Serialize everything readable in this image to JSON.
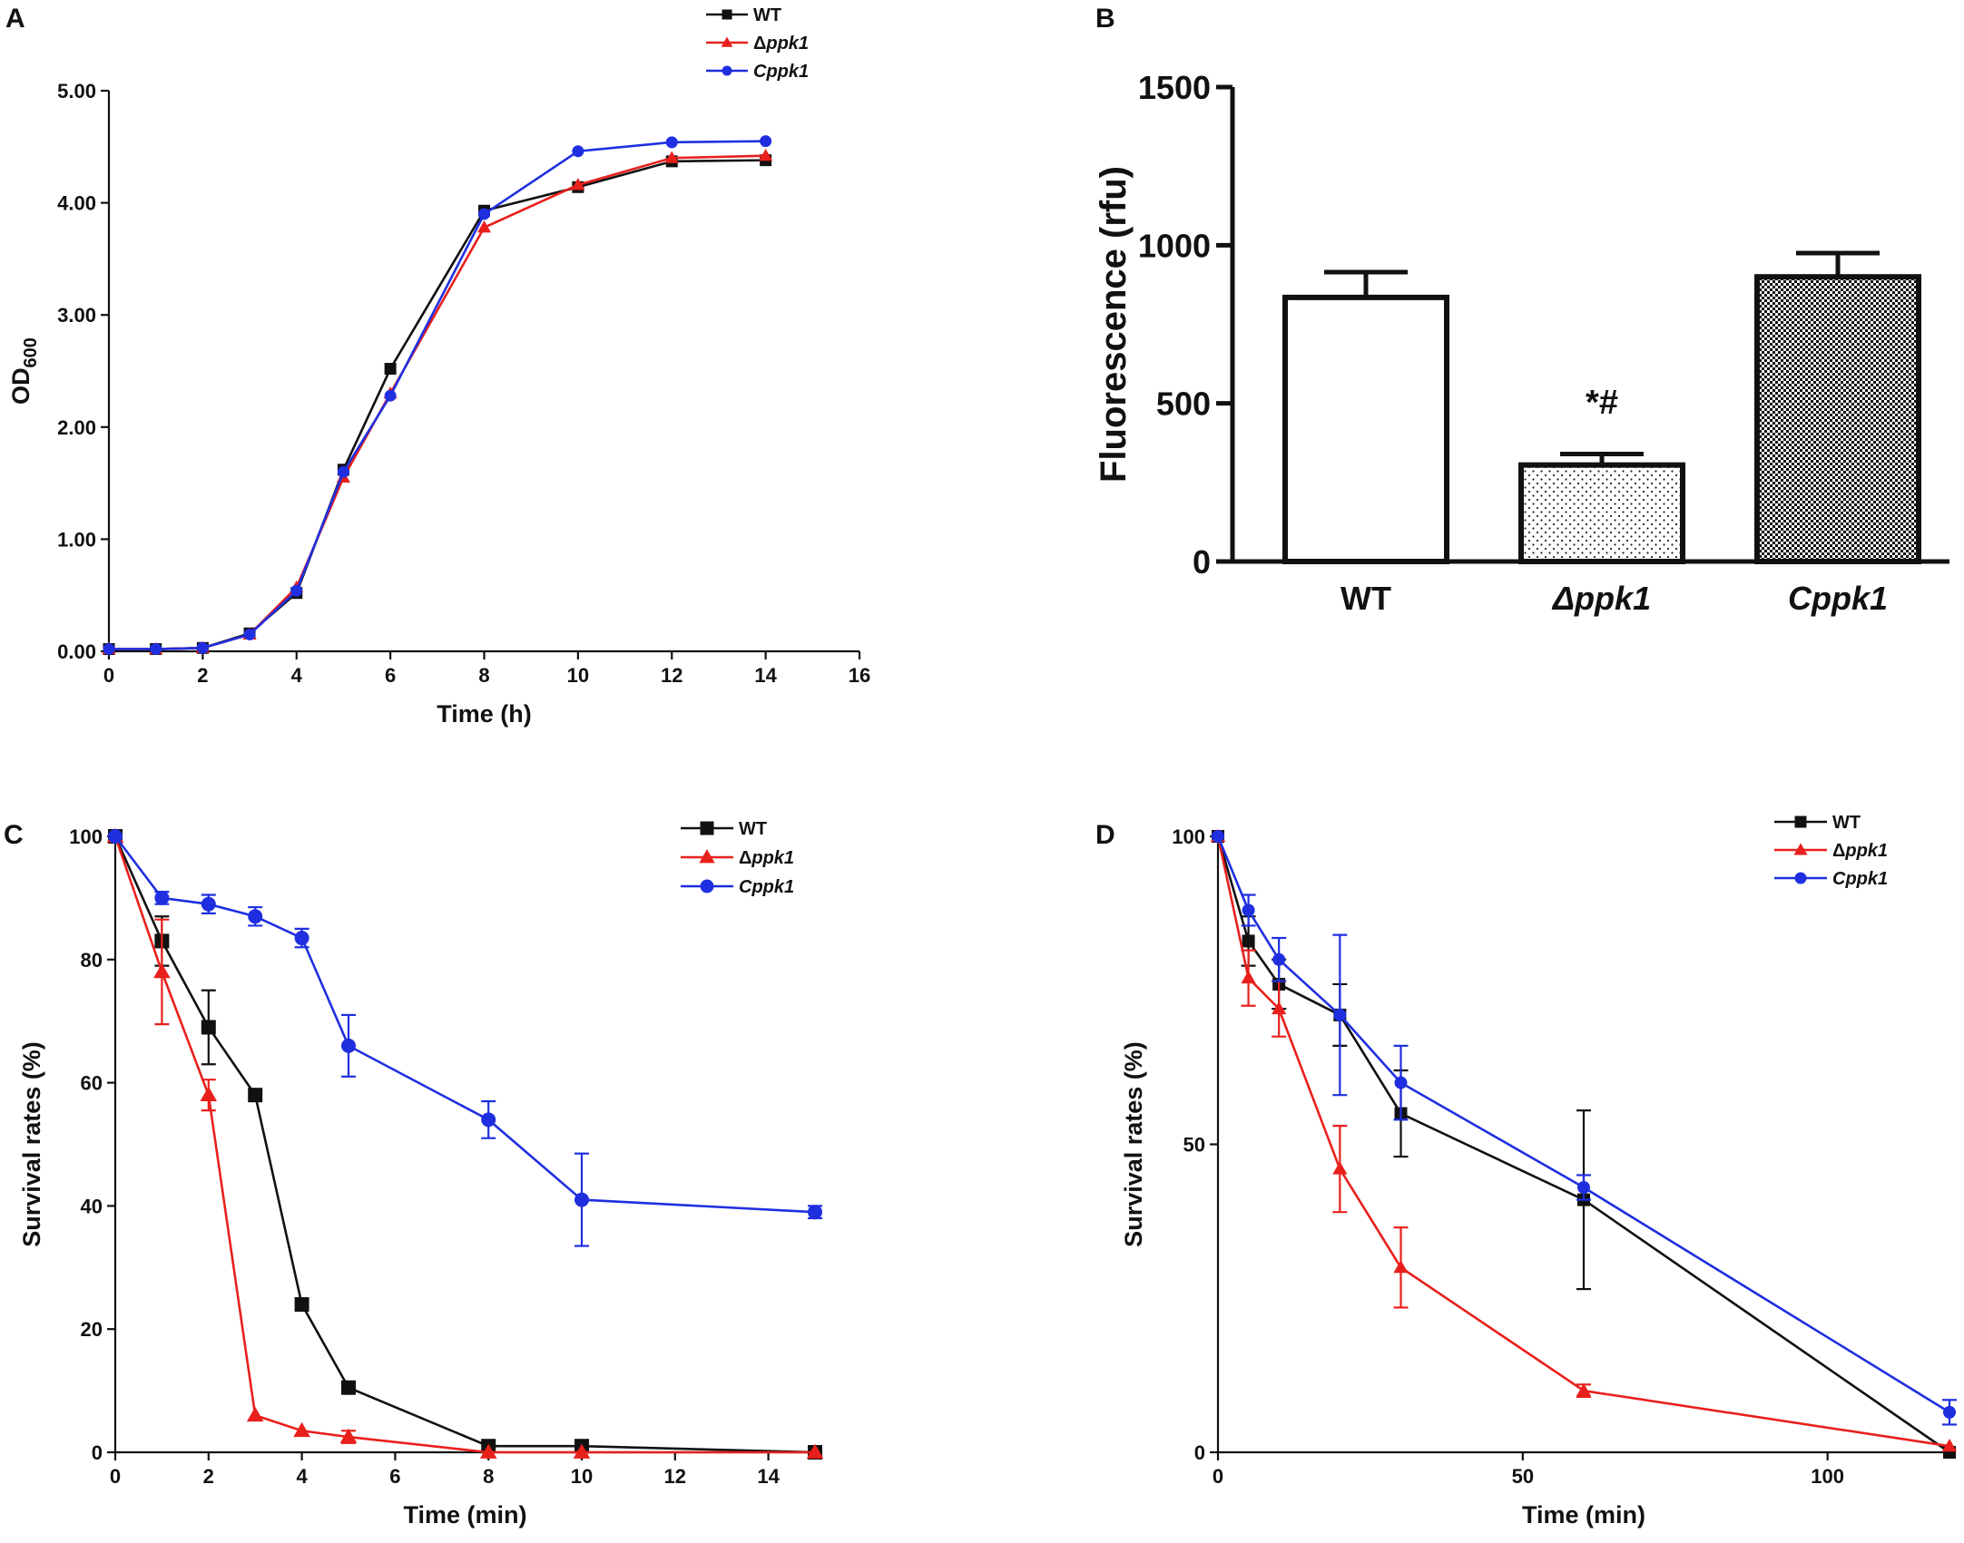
{
  "chart_data": [
    {
      "panel": "A",
      "type": "line",
      "xlabel": "Time (h)",
      "ylabel_main": "OD",
      "ylabel_sub": "600",
      "xlim": [
        0,
        16
      ],
      "ylim": [
        0,
        5
      ],
      "xticks": [
        "0",
        "2",
        "4",
        "6",
        "8",
        "10",
        "12",
        "14",
        "16"
      ],
      "yticks": [
        "0.00",
        "1.00",
        "2.00",
        "3.00",
        "4.00",
        "5.00"
      ],
      "x": [
        0,
        1,
        2,
        3,
        4,
        5,
        6,
        8,
        10,
        12,
        14
      ],
      "series": [
        {
          "name": "WT",
          "color": "#111111",
          "marker": "square",
          "values": [
            0.02,
            0.02,
            0.03,
            0.16,
            0.52,
            1.62,
            2.52,
            3.93,
            4.14,
            4.37,
            4.38
          ]
        },
        {
          "name": "Δppk1",
          "color": "#e8201c",
          "marker": "triangle",
          "values": [
            0.02,
            0.02,
            0.03,
            0.15,
            0.57,
            1.55,
            2.3,
            3.78,
            4.16,
            4.4,
            4.42
          ]
        },
        {
          "name": "Cppk1",
          "color": "#1f2fe0",
          "marker": "circle",
          "values": [
            0.02,
            0.02,
            0.03,
            0.15,
            0.54,
            1.6,
            2.28,
            3.9,
            4.46,
            4.54,
            4.55
          ]
        }
      ]
    },
    {
      "panel": "B",
      "type": "bar",
      "ylabel": "Fluorescence (rfu)",
      "ylim": [
        0,
        1500
      ],
      "yticks": [
        "0",
        "500",
        "1000",
        "1500"
      ],
      "categories": [
        "WT",
        "Δppk1",
        "Cppk1"
      ],
      "values": [
        835,
        305,
        900
      ],
      "errors": [
        80,
        35,
        75
      ],
      "annotation": "*#"
    },
    {
      "panel": "C",
      "type": "line",
      "xlabel": "Time (min)",
      "ylabel": "Survival rates (%)",
      "xlim": [
        0,
        15
      ],
      "ylim": [
        0,
        100
      ],
      "xticks": [
        "0",
        "2",
        "4",
        "6",
        "8",
        "10",
        "12",
        "14"
      ],
      "yticks": [
        "0",
        "20",
        "40",
        "60",
        "80",
        "100"
      ],
      "series": [
        {
          "name": "WT",
          "color": "#111111",
          "marker": "square",
          "x": [
            0,
            1,
            2,
            3,
            4,
            5,
            8,
            10,
            15
          ],
          "values": [
            100,
            83,
            69,
            58,
            24,
            10.5,
            1,
            1,
            0
          ],
          "errors": [
            0,
            4,
            6,
            0,
            0,
            0,
            0,
            0,
            0
          ]
        },
        {
          "name": "Δppk1",
          "color": "#e8201c",
          "marker": "triangle",
          "x": [
            0,
            1,
            2,
            3,
            4,
            5,
            8,
            10,
            15
          ],
          "values": [
            100,
            78,
            58,
            6,
            3.5,
            2.5,
            0,
            0,
            0
          ],
          "errors": [
            0,
            8.5,
            2.5,
            0,
            0,
            1,
            0,
            0,
            0
          ]
        },
        {
          "name": "Cppk1",
          "color": "#1f2fe0",
          "marker": "circle",
          "x": [
            0,
            1,
            2,
            3,
            4,
            5,
            8,
            10,
            15
          ],
          "values": [
            100,
            90,
            89,
            87,
            83.5,
            66,
            54,
            41,
            39
          ],
          "errors": [
            0,
            1,
            1.5,
            1.5,
            1.5,
            5,
            3,
            7.5,
            1
          ]
        }
      ]
    },
    {
      "panel": "D",
      "type": "line",
      "xlabel": "Time (min)",
      "ylabel": "Survival rates (%)",
      "xlim": [
        0,
        120
      ],
      "ylim": [
        0,
        100
      ],
      "xticks": [
        "0",
        "50",
        "100"
      ],
      "yticks": [
        "0",
        "50",
        "100"
      ],
      "series": [
        {
          "name": "WT",
          "color": "#111111",
          "marker": "square",
          "x": [
            0,
            5,
            10,
            20,
            30,
            60,
            120
          ],
          "values": [
            100,
            83,
            76,
            71,
            55,
            41,
            0
          ],
          "errors": [
            0,
            4,
            4,
            5,
            7,
            14.5,
            0
          ]
        },
        {
          "name": "Δppk1",
          "color": "#e8201c",
          "marker": "triangle",
          "x": [
            0,
            5,
            10,
            20,
            30,
            60,
            120
          ],
          "values": [
            100,
            77,
            72,
            46,
            30,
            10,
            1
          ],
          "errors": [
            0,
            4.5,
            4.5,
            7,
            6.5,
            1,
            0
          ]
        },
        {
          "name": "Cppk1",
          "color": "#1f2fe0",
          "marker": "circle",
          "x": [
            0,
            5,
            10,
            20,
            30,
            60,
            120
          ],
          "values": [
            100,
            88,
            80,
            71,
            60,
            43,
            6.5
          ],
          "errors": [
            0,
            2.5,
            3.5,
            13,
            6,
            2,
            2
          ]
        }
      ]
    }
  ]
}
